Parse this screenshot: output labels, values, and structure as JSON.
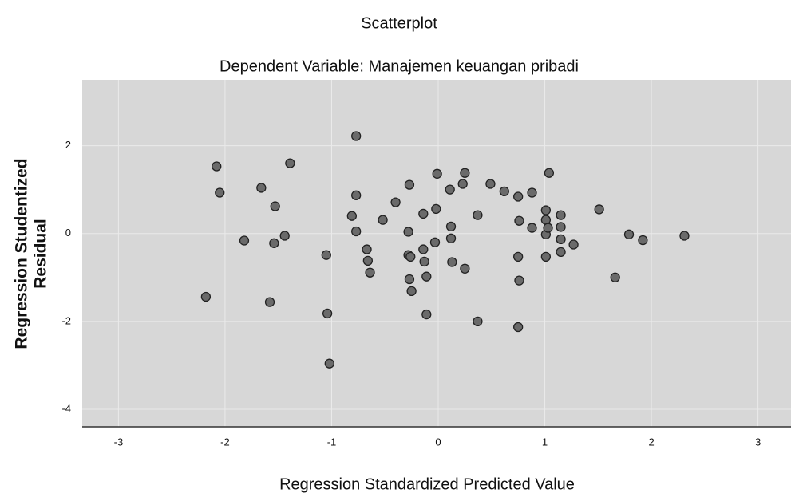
{
  "chart_data": {
    "type": "scatter",
    "title": "Scatterplot",
    "subtitle": "Dependent Variable: Manajemen keuangan pribadi",
    "x_label": "Regression Standardized Predicted Value",
    "y_label": [
      "Regression Studentized",
      "Residual"
    ],
    "xlim": [
      -3.34,
      3.31
    ],
    "ylim": [
      -4.4,
      3.5
    ],
    "xticks": [
      -3,
      -2,
      -1,
      0,
      1,
      2,
      3
    ],
    "yticks": [
      2,
      0,
      -2,
      -4
    ],
    "grid": true,
    "color": "#6a6a6a",
    "series": [
      {
        "name": null,
        "color": "#6a6a6a",
        "x": [
          -0.77,
          -2.08,
          -2.05,
          -1.39,
          -1.66,
          -1.53,
          -1.82,
          -1.54,
          -1.44,
          -2.18,
          -1.58,
          -1.05,
          -1.04,
          -1.02,
          -0.77,
          -0.81,
          -0.77,
          -0.67,
          -0.66,
          -0.64,
          -0.52,
          -0.4,
          -0.27,
          -0.28,
          -0.28,
          -0.26,
          -0.27,
          -0.25,
          -0.14,
          -0.14,
          -0.13,
          -0.11,
          -0.11,
          -0.02,
          -0.01,
          -0.03,
          0.11,
          0.12,
          0.12,
          0.13,
          0.23,
          0.25,
          0.25,
          0.37,
          0.37,
          0.49,
          0.62,
          0.75,
          0.88,
          0.76,
          0.88,
          0.75,
          0.76,
          0.75,
          1.04,
          1.01,
          1.01,
          1.01,
          1.01,
          1.15,
          1.15,
          1.15,
          1.15,
          1.27,
          1.51,
          1.66,
          1.79,
          1.92,
          2.31,
          1.03
        ],
        "values": [
          2.22,
          1.53,
          0.93,
          1.6,
          1.04,
          0.62,
          -0.16,
          -0.22,
          -0.05,
          -1.44,
          -1.56,
          -0.49,
          -1.82,
          -2.96,
          0.87,
          0.4,
          0.05,
          -0.36,
          -0.62,
          -0.89,
          0.31,
          0.71,
          1.11,
          0.04,
          -0.49,
          -0.53,
          -1.04,
          -1.31,
          0.45,
          -0.36,
          -0.64,
          -0.98,
          -1.84,
          0.56,
          1.36,
          -0.2,
          1.0,
          0.16,
          -0.11,
          -0.65,
          1.13,
          1.38,
          -0.8,
          0.42,
          -2.0,
          1.13,
          0.96,
          0.84,
          0.93,
          0.29,
          0.13,
          -0.53,
          -1.07,
          -2.13,
          1.38,
          0.53,
          0.31,
          -0.02,
          -0.53,
          0.42,
          0.15,
          -0.13,
          -0.42,
          -0.25,
          0.55,
          -1.0,
          -0.02,
          -0.15,
          -0.05,
          0.13
        ]
      }
    ]
  }
}
